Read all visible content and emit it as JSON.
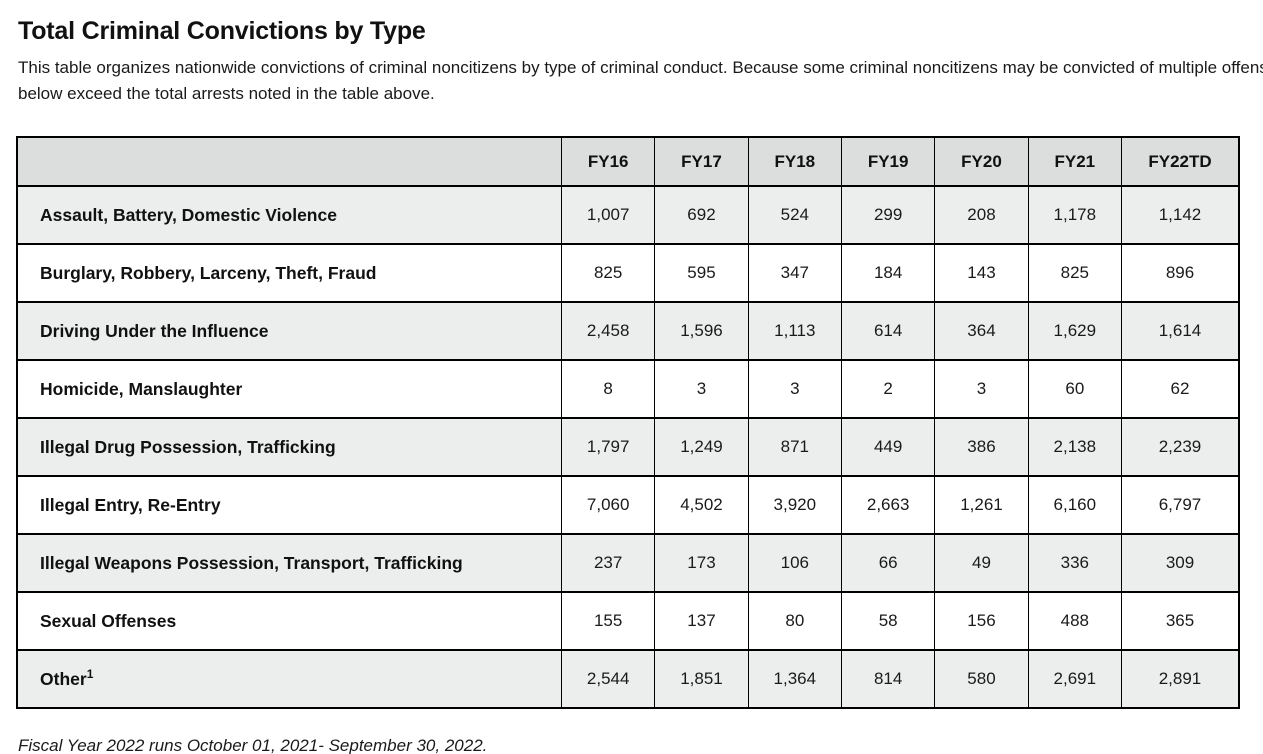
{
  "page": {
    "title": "Total Criminal Convictions by Type",
    "intro_line1": "This table organizes nationwide convictions of criminal noncitizens by type of criminal conduct. Because some criminal noncitizens may be convicted of multiple offenses, the total convictions",
    "intro_line2": "below exceed the total arrests noted in the table above.",
    "footnote": "Fiscal Year 2022 runs October 01, 2021- September 30, 2022."
  },
  "colors": {
    "header_bg": "#dcdddd",
    "stripe_bg": "#eceeee",
    "border": "#000000"
  },
  "chart_data": {
    "type": "table",
    "title": "Total Criminal Convictions by Type",
    "columns": [
      "",
      "FY16",
      "FY17",
      "FY18",
      "FY19",
      "FY20",
      "FY21",
      "FY22TD"
    ],
    "rows": [
      {
        "label": "Assault, Battery, Domestic Violence",
        "values": [
          "1,007",
          "692",
          "524",
          "299",
          "208",
          "1,178",
          "1,142"
        ]
      },
      {
        "label": "Burglary, Robbery, Larceny, Theft, Fraud",
        "values": [
          "825",
          "595",
          "347",
          "184",
          "143",
          "825",
          "896"
        ]
      },
      {
        "label": "Driving Under the Influence",
        "values": [
          "2,458",
          "1,596",
          "1,113",
          "614",
          "364",
          "1,629",
          "1,614"
        ]
      },
      {
        "label": "Homicide, Manslaughter",
        "values": [
          "8",
          "3",
          "3",
          "2",
          "3",
          "60",
          "62"
        ]
      },
      {
        "label": "Illegal Drug Possession, Trafficking",
        "values": [
          "1,797",
          "1,249",
          "871",
          "449",
          "386",
          "2,138",
          "2,239"
        ]
      },
      {
        "label": "Illegal Entry, Re-Entry",
        "values": [
          "7,060",
          "4,502",
          "3,920",
          "2,663",
          "1,261",
          "6,160",
          "6,797"
        ]
      },
      {
        "label": "Illegal Weapons Possession, Transport, Trafficking",
        "values": [
          "237",
          "173",
          "106",
          "66",
          "49",
          "336",
          "309"
        ]
      },
      {
        "label": "Sexual Offenses",
        "values": [
          "155",
          "137",
          "80",
          "58",
          "156",
          "488",
          "365"
        ]
      },
      {
        "label": "Other",
        "label_sup": "1",
        "values": [
          "2,544",
          "1,851",
          "1,364",
          "814",
          "580",
          "2,691",
          "2,891"
        ]
      }
    ]
  }
}
